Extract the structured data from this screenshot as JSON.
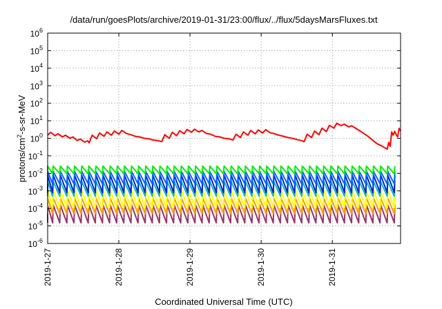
{
  "chart_data": {
    "type": "line",
    "title": "/data/run/goesPlots/archive/2019-01-31/23:00/flux/../flux/5daysMarsFluxes.txt",
    "xlabel": "Coordinated Universal Time (UTC)",
    "ylabel_parts": [
      "protons/cm",
      "2",
      "-s-sr-MeV"
    ],
    "x_range": [
      "2019-01-27 00:00",
      "2019-01-31 23:00"
    ],
    "x_ticks": [
      "2019-1-27",
      "2019-1-28",
      "2019-1-29",
      "2019-1-30",
      "2019-1-31"
    ],
    "y_scale": "log",
    "y_range": [
      1e-06,
      1000000.0
    ],
    "y_ticks": [
      {
        "base": "10",
        "exp": "-6"
      },
      {
        "base": "10",
        "exp": "-5"
      },
      {
        "base": "10",
        "exp": "-4"
      },
      {
        "base": "10",
        "exp": "-3"
      },
      {
        "base": "10",
        "exp": "-2"
      },
      {
        "base": "10",
        "exp": "-1"
      },
      {
        "base": "10",
        "exp": "0"
      },
      {
        "base": "10",
        "exp": "1"
      },
      {
        "base": "10",
        "exp": "2"
      },
      {
        "base": "10",
        "exp": "3"
      },
      {
        "base": "10",
        "exp": "4"
      },
      {
        "base": "10",
        "exp": "5"
      },
      {
        "base": "10",
        "exp": "6"
      }
    ],
    "grid": true,
    "series": [
      {
        "color": "#ff0000",
        "pattern": "steady",
        "points": [
          [
            "2019-01-27 00:00",
            1.5
          ],
          [
            "2019-01-27 01:00",
            2.2
          ],
          [
            "2019-01-27 02:30",
            1.4
          ],
          [
            "2019-01-27 03:30",
            1.8
          ],
          [
            "2019-01-27 05:00",
            1.2
          ],
          [
            "2019-01-27 06:00",
            1.5
          ],
          [
            "2019-01-27 07:30",
            1.0
          ],
          [
            "2019-01-27 08:30",
            1.2
          ],
          [
            "2019-01-27 10:00",
            0.75
          ],
          [
            "2019-01-27 11:00",
            0.9
          ],
          [
            "2019-01-27 12:30",
            0.6
          ],
          [
            "2019-01-27 13:30",
            0.72
          ],
          [
            "2019-01-27 14:00",
            0.55
          ],
          [
            "2019-01-27 15:00",
            1.5
          ],
          [
            "2019-01-27 16:30",
            0.95
          ],
          [
            "2019-01-27 17:30",
            2.0
          ],
          [
            "2019-01-27 19:00",
            1.3
          ],
          [
            "2019-01-27 20:00",
            2.3
          ],
          [
            "2019-01-27 21:30",
            1.5
          ],
          [
            "2019-01-27 22:30",
            2.6
          ],
          [
            "2019-01-28 00:00",
            1.7
          ],
          [
            "2019-01-28 01:00",
            2.8
          ],
          [
            "2019-01-28 02:30",
            1.9
          ],
          [
            "2019-01-28 04:00",
            1.6
          ],
          [
            "2019-01-28 05:30",
            1.3
          ],
          [
            "2019-01-28 07:00",
            1.2
          ],
          [
            "2019-01-28 08:30",
            1.0
          ],
          [
            "2019-01-28 10:00",
            0.95
          ],
          [
            "2019-01-28 11:30",
            0.8
          ],
          [
            "2019-01-28 13:00",
            0.75
          ],
          [
            "2019-01-28 14:30",
            0.65
          ],
          [
            "2019-01-28 15:30",
            1.6
          ],
          [
            "2019-01-28 17:00",
            1.0
          ],
          [
            "2019-01-28 18:00",
            2.2
          ],
          [
            "2019-01-28 19:30",
            1.4
          ],
          [
            "2019-01-28 20:30",
            2.7
          ],
          [
            "2019-01-28 22:00",
            1.8
          ],
          [
            "2019-01-28 23:00",
            3.2
          ],
          [
            "2019-01-29 00:30",
            2.2
          ],
          [
            "2019-01-29 01:30",
            3.3
          ],
          [
            "2019-01-29 03:00",
            2.3
          ],
          [
            "2019-01-29 04:00",
            2.8
          ],
          [
            "2019-01-29 05:30",
            1.9
          ],
          [
            "2019-01-29 07:00",
            1.7
          ],
          [
            "2019-01-29 08:30",
            1.3
          ],
          [
            "2019-01-29 10:00",
            1.2
          ],
          [
            "2019-01-29 11:30",
            1.0
          ],
          [
            "2019-01-29 13:00",
            0.95
          ],
          [
            "2019-01-29 14:30",
            0.8
          ],
          [
            "2019-01-29 15:30",
            1.7
          ],
          [
            "2019-01-29 17:00",
            1.1
          ],
          [
            "2019-01-29 18:00",
            2.3
          ],
          [
            "2019-01-29 19:30",
            1.5
          ],
          [
            "2019-01-29 20:30",
            2.8
          ],
          [
            "2019-01-29 22:00",
            1.8
          ],
          [
            "2019-01-29 23:00",
            3.0
          ],
          [
            "2019-01-30 00:30",
            2.0
          ],
          [
            "2019-01-30 01:30",
            3.1
          ],
          [
            "2019-01-30 03:00",
            2.1
          ],
          [
            "2019-01-30 04:30",
            1.8
          ],
          [
            "2019-01-30 06:00",
            1.5
          ],
          [
            "2019-01-30 07:30",
            1.3
          ],
          [
            "2019-01-30 09:00",
            1.1
          ],
          [
            "2019-01-30 10:30",
            1.0
          ],
          [
            "2019-01-30 12:00",
            0.85
          ],
          [
            "2019-01-30 13:30",
            0.75
          ],
          [
            "2019-01-30 14:30",
            0.65
          ],
          [
            "2019-01-30 15:30",
            1.7
          ],
          [
            "2019-01-30 17:00",
            1.1
          ],
          [
            "2019-01-30 18:00",
            2.6
          ],
          [
            "2019-01-30 19:30",
            1.6
          ],
          [
            "2019-01-30 20:30",
            3.8
          ],
          [
            "2019-01-30 22:00",
            2.4
          ],
          [
            "2019-01-30 23:00",
            5.5
          ],
          [
            "2019-01-31 00:30",
            3.8
          ],
          [
            "2019-01-31 01:30",
            7.2
          ],
          [
            "2019-01-31 03:00",
            5.3
          ],
          [
            "2019-01-31 04:00",
            6.4
          ],
          [
            "2019-01-31 05:30",
            4.5
          ],
          [
            "2019-01-31 06:30",
            5.2
          ],
          [
            "2019-01-31 08:00",
            3.6
          ],
          [
            "2019-01-31 10:00",
            2.2
          ],
          [
            "2019-01-31 12:00",
            1.3
          ],
          [
            "2019-01-31 13:30",
            0.8
          ],
          [
            "2019-01-31 15:00",
            0.5
          ],
          [
            "2019-01-31 16:30",
            0.38
          ],
          [
            "2019-01-31 17:30",
            0.3
          ],
          [
            "2019-01-31 18:30",
            0.24
          ],
          [
            "2019-01-31 19:00",
            0.58
          ],
          [
            "2019-01-31 19:30",
            0.35
          ],
          [
            "2019-01-31 20:00",
            2.3
          ],
          [
            "2019-01-31 20:30",
            1.5
          ],
          [
            "2019-01-31 21:00",
            2.5
          ],
          [
            "2019-01-31 21:30",
            1.6
          ],
          [
            "2019-01-31 22:00",
            1.2
          ],
          [
            "2019-01-31 22:30",
            3.7
          ],
          [
            "2019-01-31 23:00",
            2.6
          ]
        ]
      },
      {
        "color": "#00ee00",
        "pattern": "sawtooth",
        "period_hours": 2.4,
        "peak": 0.026,
        "trough": 0.0095
      },
      {
        "color": "#0066ff",
        "pattern": "sawtooth",
        "period_hours": 2.4,
        "peak": 0.013,
        "trough": 0.0025
      },
      {
        "color": "#0022cc",
        "pattern": "sawtooth",
        "period_hours": 2.4,
        "peak": 0.008,
        "trough": 0.0008
      },
      {
        "color": "#00bbbb",
        "pattern": "sawtooth",
        "period_hours": 2.4,
        "peak": 0.0035,
        "trough": 0.0005
      },
      {
        "color": "#ffff00",
        "pattern": "sawtooth",
        "period_hours": 2.4,
        "peak": 0.0011,
        "trough": 0.00011
      },
      {
        "color": "#ff9900",
        "pattern": "sawtooth",
        "period_hours": 2.4,
        "peak": 0.0004,
        "trough": 5e-05
      },
      {
        "color": "#993366",
        "pattern": "sawtooth",
        "period_hours": 2.4,
        "peak": 0.00016,
        "trough": 1.5e-05
      }
    ]
  }
}
